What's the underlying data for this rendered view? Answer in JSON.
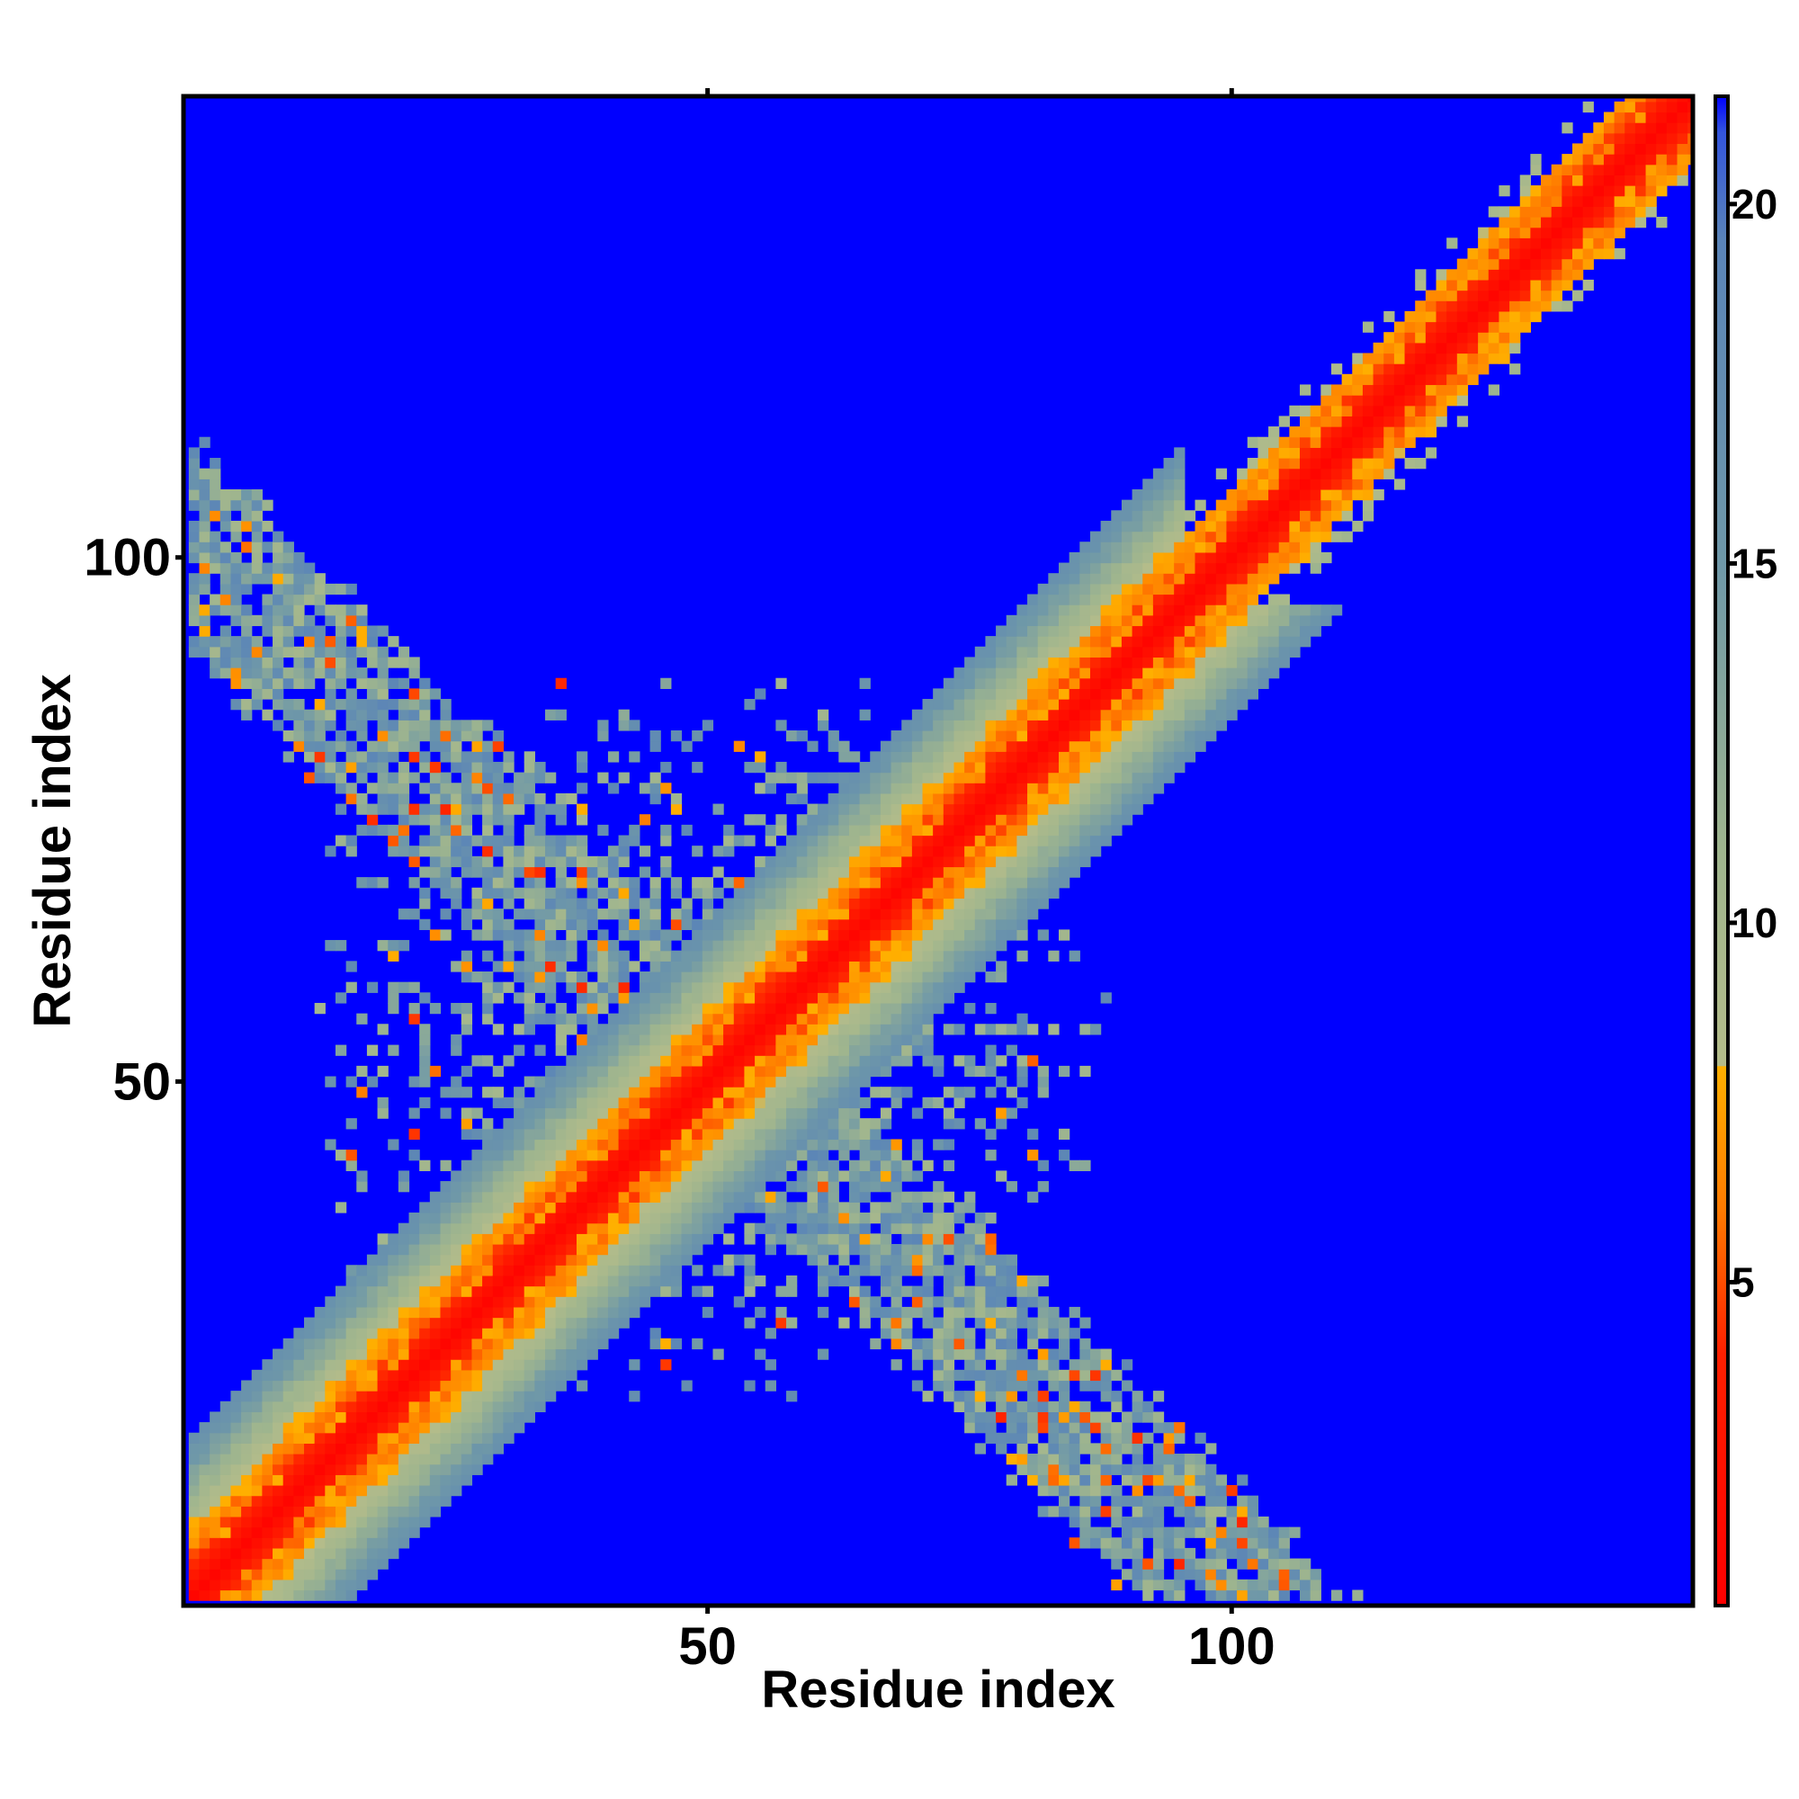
{
  "chart_data": {
    "type": "heatmap",
    "title": "",
    "xlabel": "Residue index",
    "ylabel": "Residue index",
    "xlim": [
      1,
      144
    ],
    "ylim": [
      1,
      144
    ],
    "x_ticks": [
      50,
      100
    ],
    "y_ticks": [
      50,
      100
    ],
    "colorbar": {
      "range": [
        0.5,
        21.5
      ],
      "ticks": [
        5,
        10,
        15,
        20
      ],
      "stops": [
        {
          "value": 0.5,
          "color": "#ff0000"
        },
        {
          "value": 4.0,
          "color": "#ff2000"
        },
        {
          "value": 6.0,
          "color": "#ff7a00"
        },
        {
          "value": 8.0,
          "color": "#ffb000"
        },
        {
          "value": 8.01,
          "color": "#b4bc8a"
        },
        {
          "value": 11.0,
          "color": "#9fb58e"
        },
        {
          "value": 15.0,
          "color": "#6f98a8"
        },
        {
          "value": 19.5,
          "color": "#5a84b8"
        },
        {
          "value": 21.0,
          "color": "#3355dd"
        },
        {
          "value": 21.5,
          "color": "#0000ff"
        }
      ]
    },
    "background_value": 21.5,
    "description_of_regions": {
      "diagonal": "Symmetric contact map of residue pairs; distance values rise from ~1 on the main diagonal to ~16 at about 15 residues from it, with values above 20 (blue) elsewhere.",
      "main_diagonal_band": {
        "from": 1,
        "to": 144,
        "halfwidth_residues": 15
      },
      "anti_diagonal_band": {
        "from": [
          1,
          101
        ],
        "to": [
          101,
          1
        ],
        "halfwidth_residues": 9
      },
      "central_patch": {
        "x_range": [
          12,
          88
        ],
        "y_range": [
          20,
          88
        ]
      }
    }
  }
}
